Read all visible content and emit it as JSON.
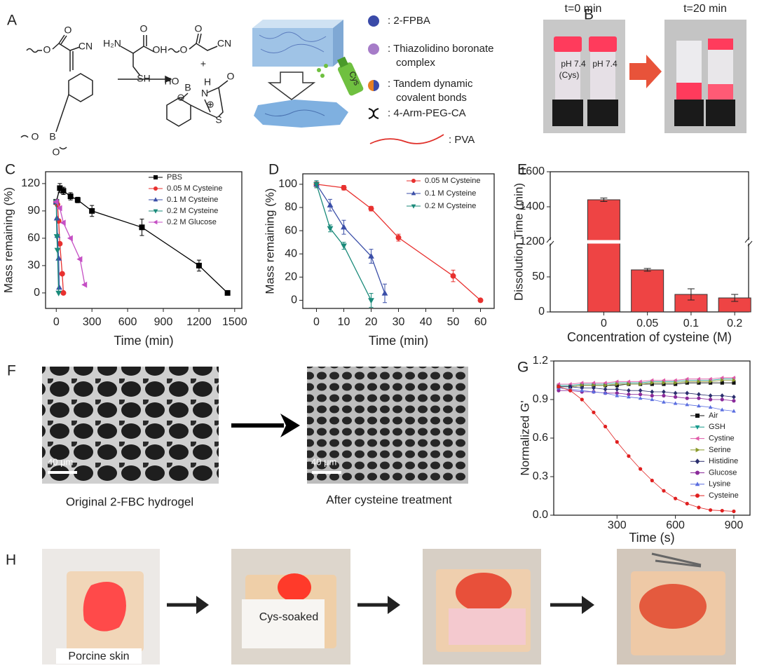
{
  "panels": {
    "labels": [
      "A",
      "B",
      "C",
      "D",
      "E",
      "F",
      "G",
      "H"
    ],
    "a": {
      "atoms": [
        "O",
        "CN",
        "O",
        "B",
        "O",
        "O",
        "H₂N",
        "O",
        "OH",
        "SH",
        "O",
        "O",
        "CN",
        "+",
        "HO",
        "B",
        "H",
        "N",
        "O",
        "S",
        "⊖",
        "⊕"
      ],
      "spray": "Cys",
      "legend": [
        [
          ": 2-FPBA"
        ],
        [
          ": Thiazolidino boronate",
          "complex"
        ],
        [
          ": Tandem dynamic",
          "covalent bonds"
        ],
        [
          ": 4-Arm-PEG-CA"
        ],
        [
          ": PVA"
        ]
      ]
    },
    "b": {
      "times": [
        "t=0 min",
        "t=20 min"
      ],
      "vials": [
        [
          "pH 7.4",
          "(Cys)"
        ],
        [
          "pH 7.4"
        ]
      ]
    },
    "f": {
      "scale": [
        "40 μm",
        "40 μm"
      ],
      "captions": [
        "Original 2-FBC hydrogel",
        "After cysteine treatment"
      ]
    },
    "h": {
      "captions": [
        "Porcine skin",
        "Cys-soaked"
      ]
    }
  },
  "chart_data": [
    {
      "type": "line",
      "xlabel": "Time (min)",
      "ylabel": "Mass remaining (%)",
      "xlim": [
        -90,
        1560
      ],
      "ylim": [
        -17,
        133
      ],
      "xticks": [
        0,
        300,
        600,
        900,
        1200,
        1500
      ],
      "yticks": [
        0,
        30,
        60,
        90,
        120
      ],
      "legend": "upper right",
      "series": [
        {
          "name": "PBS",
          "color": "#000000",
          "marker": "square",
          "x": [
            0,
            30,
            60,
            120,
            180,
            300,
            720,
            1200,
            1440
          ],
          "values": [
            100,
            115,
            112,
            106,
            102,
            90,
            72,
            30,
            0
          ],
          "errors": [
            2,
            5,
            4,
            4,
            3,
            6,
            9,
            6,
            2
          ]
        },
        {
          "name": "0.05 M Cysteine",
          "color": "#e8312f",
          "marker": "circle",
          "x": [
            0,
            10,
            20,
            30,
            50,
            60
          ],
          "values": [
            100,
            97,
            79,
            54,
            21,
            0
          ]
        },
        {
          "name": "0.1 M Cysteine",
          "color": "#3b4fa8",
          "marker": "triangle-up",
          "x": [
            0,
            5,
            10,
            20,
            25
          ],
          "values": [
            100,
            82,
            63,
            38,
            6
          ]
        },
        {
          "name": "0.2 M Cysteine",
          "color": "#1a8a7a",
          "marker": "triangle-down",
          "x": [
            0,
            5,
            10,
            20
          ],
          "values": [
            100,
            62,
            47,
            0
          ]
        },
        {
          "name": "0.2 M Glucose",
          "color": "#c54fc4",
          "marker": "triangle-left",
          "x": [
            0,
            30,
            60,
            120,
            200,
            240
          ],
          "values": [
            100,
            93,
            77,
            60,
            37,
            9
          ]
        }
      ]
    },
    {
      "type": "line",
      "xlabel": "Time (min)",
      "ylabel": "Mass remaining (%)",
      "xlim": [
        -5,
        65
      ],
      "ylim": [
        -7,
        109
      ],
      "xticks": [
        0,
        10,
        20,
        30,
        40,
        50,
        60
      ],
      "yticks": [
        0,
        20,
        40,
        60,
        80,
        100
      ],
      "legend": "upper right",
      "series": [
        {
          "name": "0.05 M Cysteine",
          "color": "#e8312f",
          "marker": "circle",
          "x": [
            0,
            10,
            20,
            30,
            50,
            60
          ],
          "values": [
            100,
            97,
            79,
            54,
            21,
            0
          ],
          "errors": [
            2,
            2,
            2,
            3,
            5,
            1
          ]
        },
        {
          "name": "0.1 M Cysteine",
          "color": "#3b4fa8",
          "marker": "triangle-up",
          "x": [
            0,
            5,
            10,
            20,
            25
          ],
          "values": [
            100,
            82,
            63,
            38,
            6
          ],
          "errors": [
            3,
            5,
            6,
            6,
            8
          ]
        },
        {
          "name": "0.2 M Cysteine",
          "color": "#1a8a7a",
          "marker": "triangle-down",
          "x": [
            0,
            5,
            10,
            20
          ],
          "values": [
            100,
            62,
            47,
            0
          ],
          "errors": [
            3,
            3,
            3,
            6
          ]
        }
      ]
    },
    {
      "type": "bar",
      "xlabel": "Concentration of cysteine (M)",
      "ylabel": "Dissolution Time (min)",
      "categories": [
        "0",
        "0.05",
        "0.1",
        "0.2"
      ],
      "values": [
        1440,
        60,
        25,
        20
      ],
      "errors": [
        10,
        2,
        8,
        5
      ],
      "color": "#ee4444",
      "ylim": [
        0,
        1600
      ],
      "yticks": [
        0,
        50,
        1200,
        1400,
        1600
      ],
      "axis_break": [
        100,
        1200
      ]
    },
    {
      "type": "line",
      "xlabel": "Time (s)",
      "ylabel": "Normalized G'",
      "xlim": [
        -25,
        983
      ],
      "ylim": [
        0,
        1.2
      ],
      "xticks": [
        300,
        600,
        900
      ],
      "yticks": [
        {
          "value": 0,
          "label": "0.0"
        },
        0.3,
        0.6,
        0.9,
        1.2
      ],
      "legend": "lower right",
      "x": [
        0,
        60,
        120,
        180,
        240,
        300,
        360,
        420,
        480,
        540,
        600,
        660,
        720,
        780,
        840,
        900
      ],
      "series": [
        {
          "name": "Air",
          "color": "#111111",
          "marker": "square",
          "values": [
            1.0,
            1.0,
            1.01,
            1.01,
            1.01,
            1.01,
            1.02,
            1.02,
            1.02,
            1.02,
            1.02,
            1.03,
            1.03,
            1.03,
            1.03,
            1.03
          ]
        },
        {
          "name": "GSH",
          "color": "#169a8c",
          "marker": "triangle-down",
          "values": [
            1.01,
            1.01,
            1.02,
            1.02,
            1.02,
            1.03,
            1.03,
            1.03,
            1.04,
            1.04,
            1.04,
            1.05,
            1.05,
            1.05,
            1.06,
            1.06
          ]
        },
        {
          "name": "Cystine",
          "color": "#e05aa8",
          "marker": "triangle-left",
          "values": [
            1.02,
            1.02,
            1.03,
            1.03,
            1.03,
            1.04,
            1.04,
            1.04,
            1.05,
            1.05,
            1.05,
            1.06,
            1.06,
            1.06,
            1.07,
            1.07
          ]
        },
        {
          "name": "Serine",
          "color": "#8a9a2a",
          "marker": "triangle-right",
          "values": [
            1.0,
            1.0,
            1.01,
            1.01,
            1.01,
            1.02,
            1.02,
            1.02,
            1.03,
            1.03,
            1.03,
            1.04,
            1.04,
            1.04,
            1.05,
            1.05
          ]
        },
        {
          "name": "Histidine",
          "color": "#2b2f6e",
          "marker": "diamond",
          "values": [
            1.0,
            1.0,
            0.99,
            0.99,
            0.98,
            0.98,
            0.97,
            0.97,
            0.96,
            0.96,
            0.95,
            0.95,
            0.94,
            0.93,
            0.93,
            0.92
          ]
        },
        {
          "name": "Glucose",
          "color": "#8a2a9a",
          "marker": "circle",
          "values": [
            0.97,
            0.97,
            0.96,
            0.96,
            0.95,
            0.95,
            0.94,
            0.94,
            0.93,
            0.93,
            0.92,
            0.91,
            0.91,
            0.9,
            0.9,
            0.89
          ]
        },
        {
          "name": "Lysine",
          "color": "#5a6ee0",
          "marker": "triangle-up",
          "values": [
            0.99,
            0.98,
            0.97,
            0.96,
            0.95,
            0.93,
            0.92,
            0.91,
            0.9,
            0.88,
            0.87,
            0.86,
            0.85,
            0.84,
            0.82,
            0.81
          ]
        },
        {
          "name": "Cysteine",
          "color": "#e02020",
          "marker": "circle",
          "values": [
            1.0,
            0.97,
            0.9,
            0.8,
            0.69,
            0.57,
            0.46,
            0.36,
            0.27,
            0.19,
            0.13,
            0.09,
            0.06,
            0.04,
            0.035,
            0.03
          ]
        }
      ]
    }
  ]
}
